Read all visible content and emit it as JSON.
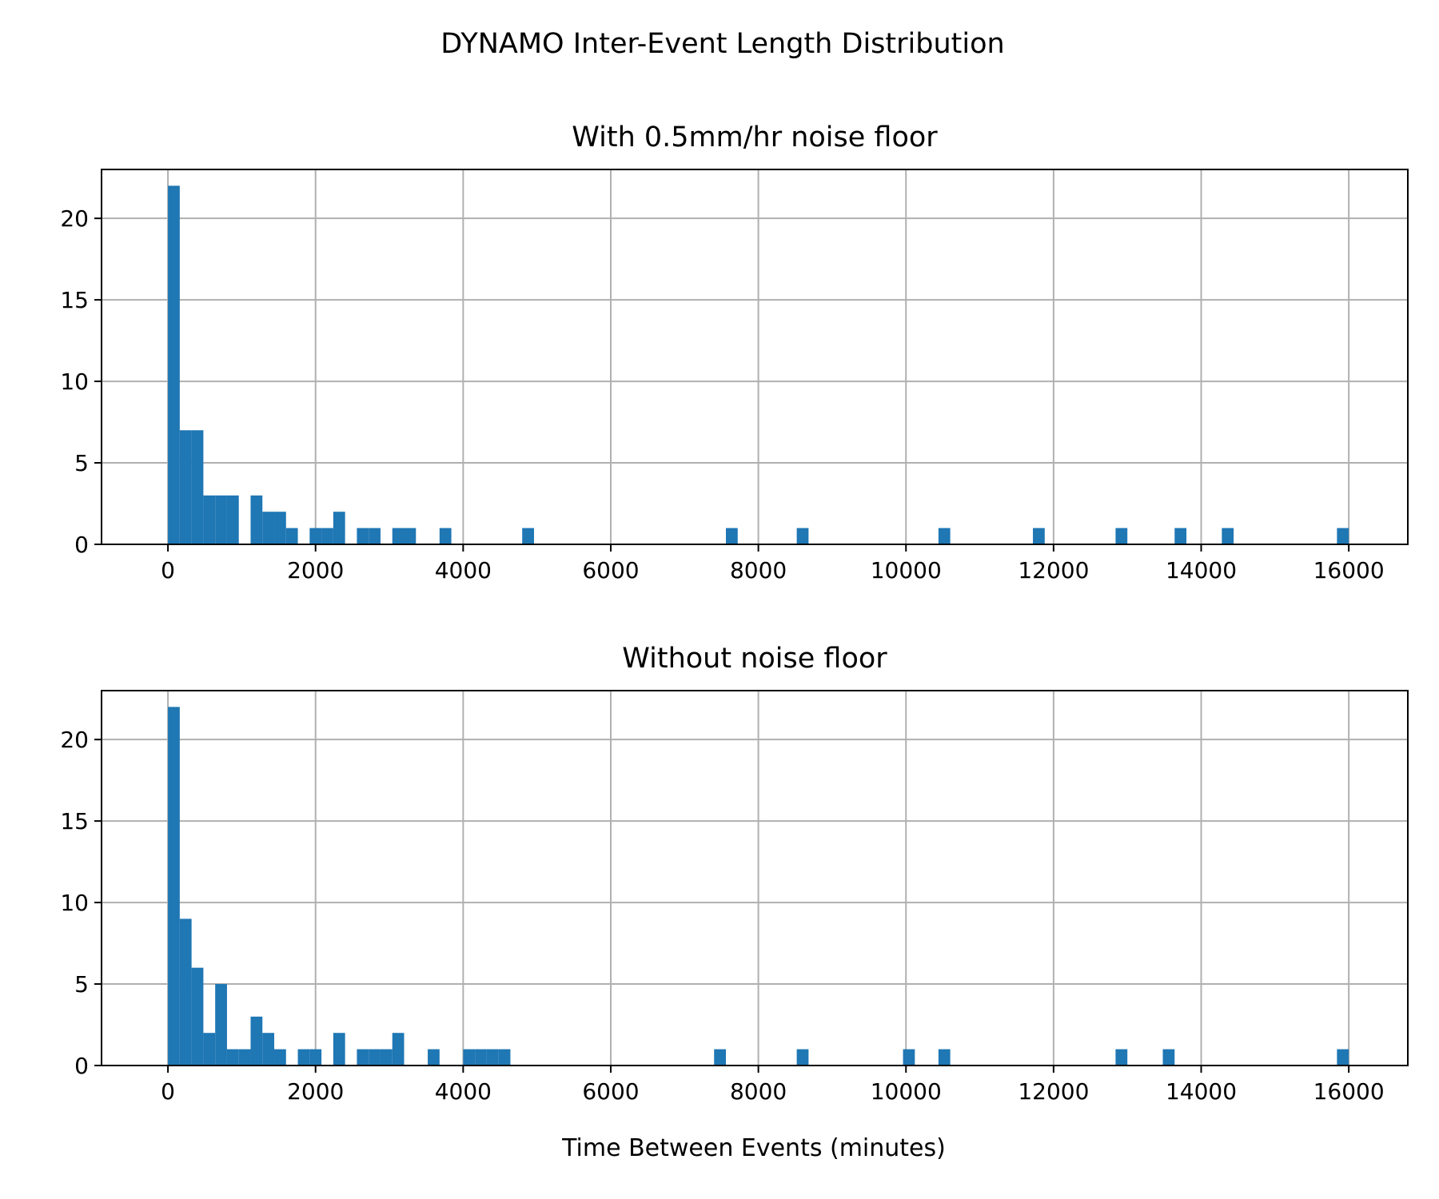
{
  "chart_data": {
    "type": "bar",
    "title": "DYNAMO Inter-Event Length Distribution",
    "xlabel": "Time Between Events (minutes)",
    "xlim": [
      -900,
      16800
    ],
    "ylim": [
      0,
      23
    ],
    "xticks": [
      0,
      2000,
      4000,
      6000,
      8000,
      10000,
      12000,
      14000,
      16000
    ],
    "yticks": [
      0,
      5,
      10,
      15,
      20
    ],
    "grid": true,
    "bar_color": "#1f77b4",
    "bin_width": 160,
    "panels": [
      {
        "title": "With 0.5mm/hr noise floor",
        "bins": [
          {
            "x": 0,
            "count": 22
          },
          {
            "x": 160,
            "count": 7
          },
          {
            "x": 320,
            "count": 7
          },
          {
            "x": 480,
            "count": 3
          },
          {
            "x": 640,
            "count": 3
          },
          {
            "x": 800,
            "count": 3
          },
          {
            "x": 1120,
            "count": 3
          },
          {
            "x": 1280,
            "count": 2
          },
          {
            "x": 1440,
            "count": 2
          },
          {
            "x": 1600,
            "count": 1
          },
          {
            "x": 1920,
            "count": 1
          },
          {
            "x": 2080,
            "count": 1
          },
          {
            "x": 2240,
            "count": 2
          },
          {
            "x": 2560,
            "count": 1
          },
          {
            "x": 2720,
            "count": 1
          },
          {
            "x": 3040,
            "count": 1
          },
          {
            "x": 3200,
            "count": 1
          },
          {
            "x": 3680,
            "count": 1
          },
          {
            "x": 4800,
            "count": 1
          },
          {
            "x": 7560,
            "count": 1
          },
          {
            "x": 8520,
            "count": 1
          },
          {
            "x": 10440,
            "count": 1
          },
          {
            "x": 11720,
            "count": 1
          },
          {
            "x": 12840,
            "count": 1
          },
          {
            "x": 13640,
            "count": 1
          },
          {
            "x": 14280,
            "count": 1
          },
          {
            "x": 15840,
            "count": 1
          }
        ]
      },
      {
        "title": "Without noise floor",
        "bins": [
          {
            "x": 0,
            "count": 22
          },
          {
            "x": 160,
            "count": 9
          },
          {
            "x": 320,
            "count": 6
          },
          {
            "x": 480,
            "count": 2
          },
          {
            "x": 640,
            "count": 5
          },
          {
            "x": 800,
            "count": 1
          },
          {
            "x": 960,
            "count": 1
          },
          {
            "x": 1120,
            "count": 3
          },
          {
            "x": 1280,
            "count": 2
          },
          {
            "x": 1440,
            "count": 1
          },
          {
            "x": 1760,
            "count": 1
          },
          {
            "x": 1920,
            "count": 1
          },
          {
            "x": 2240,
            "count": 2
          },
          {
            "x": 2560,
            "count": 1
          },
          {
            "x": 2720,
            "count": 1
          },
          {
            "x": 2880,
            "count": 1
          },
          {
            "x": 3040,
            "count": 2
          },
          {
            "x": 3520,
            "count": 1
          },
          {
            "x": 4000,
            "count": 1
          },
          {
            "x": 4160,
            "count": 1
          },
          {
            "x": 4320,
            "count": 1
          },
          {
            "x": 4480,
            "count": 1
          },
          {
            "x": 7400,
            "count": 1
          },
          {
            "x": 8520,
            "count": 1
          },
          {
            "x": 9960,
            "count": 1
          },
          {
            "x": 10440,
            "count": 1
          },
          {
            "x": 12840,
            "count": 1
          },
          {
            "x": 13480,
            "count": 1
          },
          {
            "x": 15840,
            "count": 1
          }
        ]
      }
    ]
  }
}
